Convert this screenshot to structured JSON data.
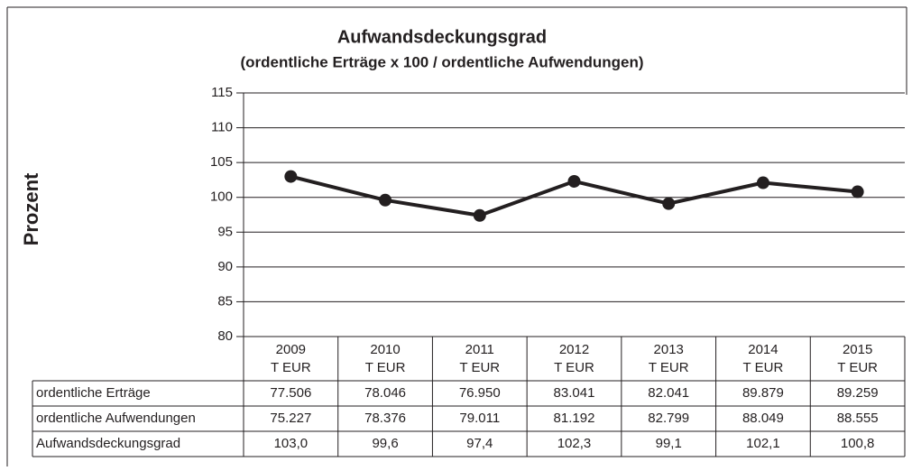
{
  "chart_data": {
    "type": "line",
    "title": "Aufwandsdeckungsgrad",
    "subtitle": "(ordentliche Erträge x 100 / ordentliche Aufwendungen)",
    "y_label": "Prozent",
    "categories": [
      "2009",
      "2010",
      "2011",
      "2012",
      "2013",
      "2014",
      "2015"
    ],
    "category_unit": "T EUR",
    "series": [
      {
        "name": "Aufwandsdeckungsgrad",
        "color": "#231f20",
        "values": [
          103.0,
          99.6,
          97.4,
          102.3,
          99.1,
          102.1,
          100.8
        ],
        "value_labels": [
          "103,0",
          "99,6",
          "97,4",
          "102,3",
          "99,1",
          "102,1",
          "100,8"
        ]
      }
    ],
    "table_rows": [
      {
        "name": "ordentliche Erträge",
        "values": [
          77506,
          78046,
          76950,
          83041,
          82041,
          89879,
          89259
        ],
        "value_labels": [
          "77.506",
          "78.046",
          "76.950",
          "83.041",
          "82.041",
          "89.879",
          "89.259"
        ]
      },
      {
        "name": "ordentliche Aufwendungen",
        "values": [
          75227,
          78376,
          79011,
          81192,
          82799,
          88049,
          88555
        ],
        "value_labels": [
          "75.227",
          "78.376",
          "79.011",
          "81.192",
          "82.799",
          "88.049",
          "88.555"
        ]
      }
    ],
    "ylim": [
      80,
      115
    ],
    "yticks": [
      80,
      85,
      90,
      95,
      100,
      105,
      110,
      115
    ],
    "grid": true
  }
}
